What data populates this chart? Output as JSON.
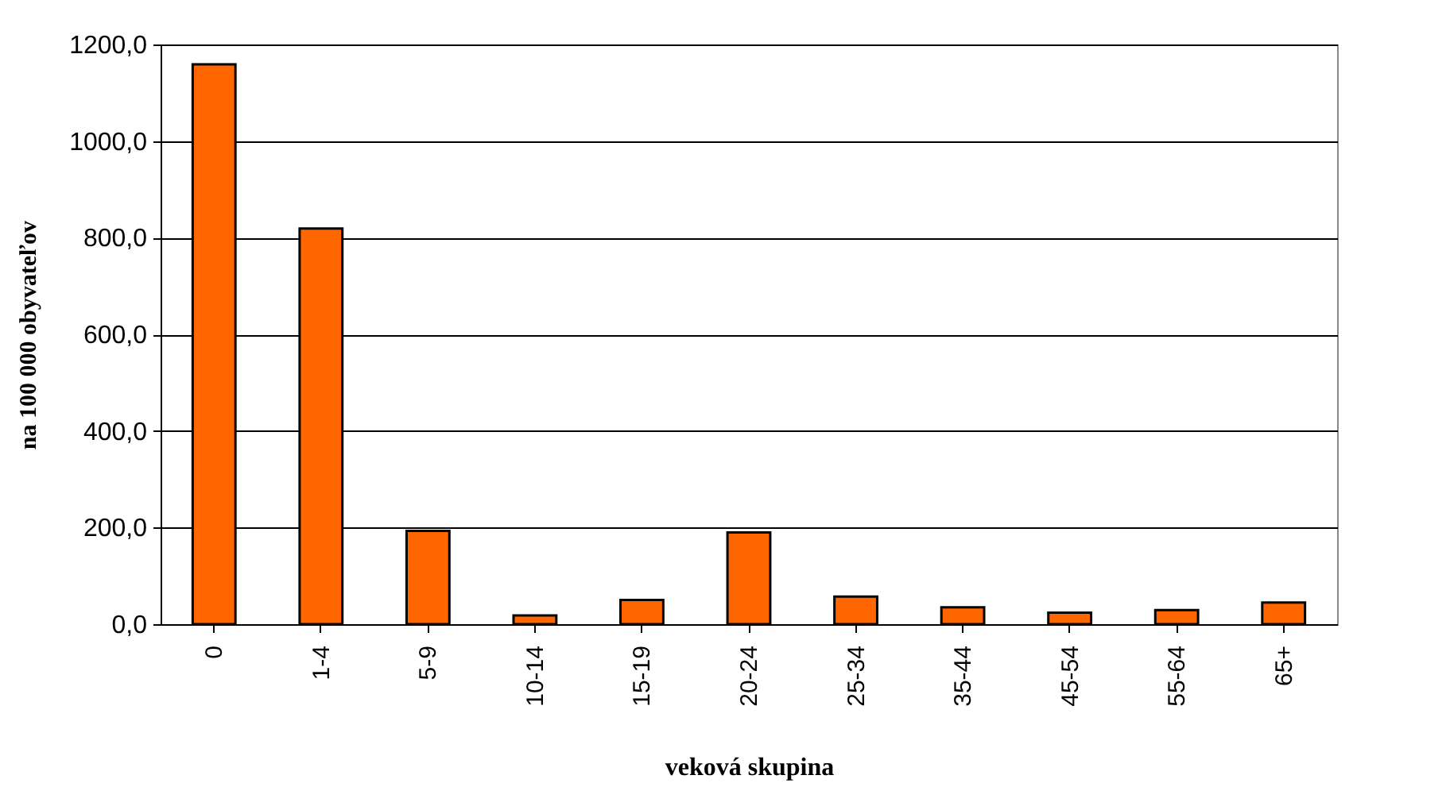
{
  "chart_data": {
    "type": "bar",
    "xlabel": "veková skupina",
    "ylabel": "na 100 000 obyvateľov",
    "categories": [
      "0",
      "1-4",
      "5-9",
      "10-14",
      "15-19",
      "20-24",
      "25-34",
      "35-44",
      "45-54",
      "55-64",
      "65+"
    ],
    "values": [
      1159,
      819,
      193,
      18,
      50,
      190,
      57,
      35,
      24,
      29,
      45
    ],
    "color": "#ff6600",
    "ylim": [
      0,
      1200
    ],
    "yticks": [
      {
        "value": 0,
        "label": "0,0"
      },
      {
        "value": 200,
        "label": "200,0"
      },
      {
        "value": 400,
        "label": "400,0"
      },
      {
        "value": 600,
        "label": "600,0"
      },
      {
        "value": 800,
        "label": "800,0"
      },
      {
        "value": 1000,
        "label": "1000,0"
      },
      {
        "value": 1200,
        "label": "1200,0"
      }
    ],
    "grid": "y"
  }
}
